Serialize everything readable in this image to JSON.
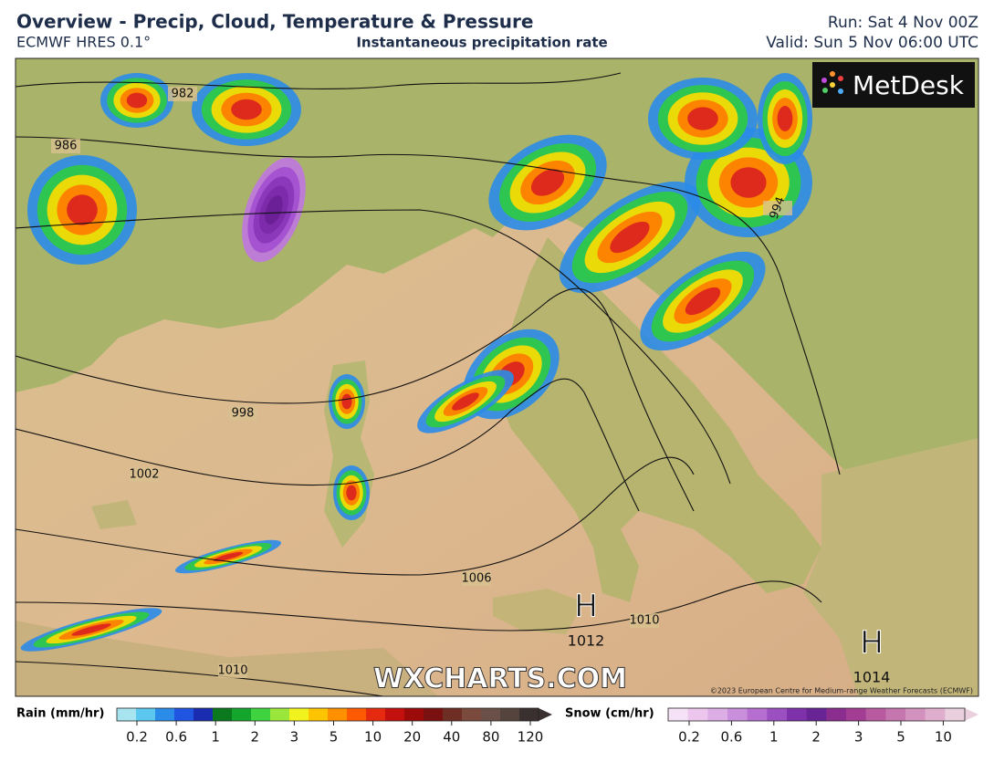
{
  "header": {
    "title": "Overview - Precip, Cloud, Temperature & Pressure",
    "model": "ECMWF HRES 0.1°",
    "field": "Instantaneous precipitation rate",
    "run": "Run: Sat 4 Nov 00Z",
    "valid": "Valid: Sun 5 Nov 06:00 UTC"
  },
  "map": {
    "logo": "MetDesk",
    "watermark": "WXCHARTS.COM",
    "copyright": "©2023 European Centre for Medium-range Weather Forecasts (ECMWF)",
    "isobar_labels": [
      "982",
      "986",
      "994",
      "998",
      "1002",
      "1006",
      "1010",
      "1010"
    ],
    "pressure_centres": [
      {
        "symbol": "H",
        "value": "1012"
      },
      {
        "symbol": "H",
        "value": "1014"
      }
    ]
  },
  "legend": {
    "rain": {
      "title": "Rain (mm/hr)",
      "labels": [
        "0.2",
        "0.6",
        "1",
        "2",
        "3",
        "5",
        "10",
        "20",
        "40",
        "80",
        "120"
      ]
    },
    "snow": {
      "title": "Snow (cm/hr)",
      "labels": [
        "0.2",
        "0.6",
        "1",
        "2",
        "3",
        "5",
        "10"
      ]
    }
  }
}
